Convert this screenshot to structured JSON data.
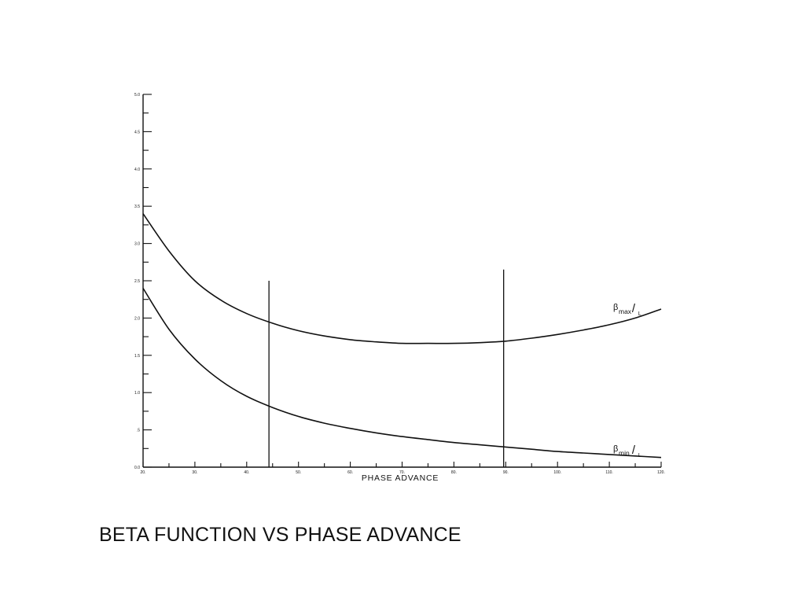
{
  "caption": "BETA FUNCTION VS PHASE ADVANCE",
  "chart_data": {
    "type": "line",
    "xlabel": "PHASE ADVANCE",
    "ylabel": "",
    "xlim": [
      20,
      120
    ],
    "ylim": [
      0,
      5
    ],
    "x_ticks": [
      "20.",
      "30.",
      "40.",
      "50.",
      "60.",
      "70.",
      "80.",
      "90.",
      "100.",
      "110.",
      "120."
    ],
    "y_ticks": [
      "0.0",
      ".5",
      "1.0",
      "1.5",
      "2.0",
      "2.5",
      "3.0",
      "3.5",
      "4.0",
      "4.5",
      "5.0"
    ],
    "grid": false,
    "series": [
      {
        "name": "βmax/L",
        "x": [
          20,
          25,
          30,
          35,
          40,
          45,
          50,
          55,
          60,
          65,
          70,
          75,
          80,
          85,
          90,
          95,
          100,
          105,
          110,
          115,
          120
        ],
        "values": [
          3.4,
          2.9,
          2.5,
          2.24,
          2.06,
          1.93,
          1.83,
          1.76,
          1.71,
          1.68,
          1.66,
          1.66,
          1.66,
          1.67,
          1.69,
          1.73,
          1.78,
          1.84,
          1.91,
          2.0,
          2.12
        ]
      },
      {
        "name": "βmin/L",
        "x": [
          20,
          25,
          30,
          35,
          40,
          45,
          50,
          55,
          60,
          65,
          70,
          75,
          80,
          85,
          90,
          95,
          100,
          105,
          110,
          115,
          120
        ],
        "values": [
          2.4,
          1.85,
          1.45,
          1.16,
          0.95,
          0.8,
          0.68,
          0.59,
          0.52,
          0.46,
          0.41,
          0.37,
          0.33,
          0.3,
          0.27,
          0.24,
          0.21,
          0.19,
          0.17,
          0.15,
          0.13
        ]
      }
    ],
    "series_labels": [
      {
        "beta": "β",
        "sub": "max",
        "over": "/",
        "den": "L"
      },
      {
        "beta": "β",
        "sub": "min",
        "over": "/",
        "den": "L"
      }
    ],
    "vertical_markers": [
      {
        "x": 44.3,
        "y_top": 2.5
      },
      {
        "x": 89.6,
        "y_top": 2.65
      }
    ]
  }
}
